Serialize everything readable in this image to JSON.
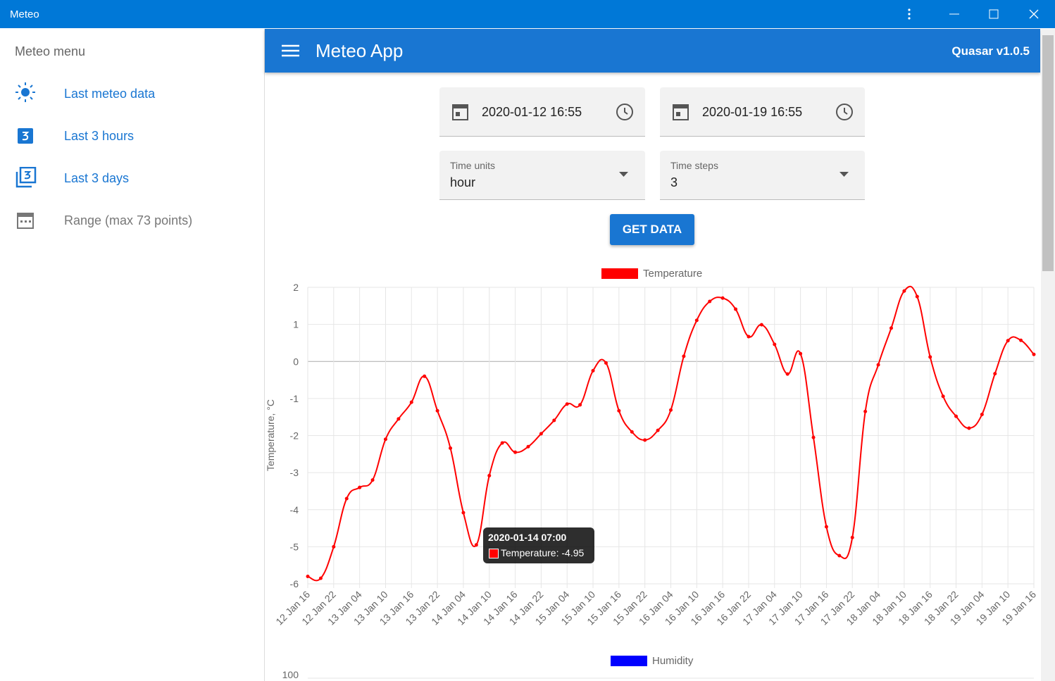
{
  "window": {
    "title": "Meteo"
  },
  "sidebar": {
    "title": "Meteo menu",
    "items": [
      "Last meteo data",
      "Last 3 hours",
      "Last 3 days",
      "Range (max 73 points)"
    ]
  },
  "header": {
    "title": "Meteo App",
    "version": "Quasar v1.0.5"
  },
  "form": {
    "from": "2020-01-12 16:55",
    "to": "2020-01-19 16:55",
    "time_units": {
      "label": "Time units",
      "value": "hour"
    },
    "time_steps": {
      "label": "Time steps",
      "value": "3"
    },
    "button": "GET DATA"
  },
  "tooltip": {
    "title": "2020-01-14 07:00",
    "text": "Temperature: -4.95"
  },
  "chart_data": [
    {
      "type": "line",
      "y_label": "Temperature, °C",
      "categories": [
        "12 Jan 16",
        null,
        "12 Jan 22",
        null,
        "13 Jan 04",
        null,
        "13 Jan 10",
        null,
        "13 Jan 16",
        null,
        "13 Jan 22",
        null,
        "14 Jan 04",
        null,
        "14 Jan 10",
        null,
        "14 Jan 16",
        null,
        "14 Jan 22",
        null,
        "15 Jan 04",
        null,
        "15 Jan 10",
        null,
        "15 Jan 16",
        null,
        "15 Jan 22",
        null,
        "16 Jan 04",
        null,
        "16 Jan 10",
        null,
        "16 Jan 16",
        null,
        "16 Jan 22",
        null,
        "17 Jan 04",
        null,
        "17 Jan 10",
        null,
        "17 Jan 16",
        null,
        "17 Jan 22",
        null,
        "18 Jan 04",
        null,
        "18 Jan 10",
        null,
        "18 Jan 16",
        null,
        "18 Jan 22",
        null,
        "19 Jan 04",
        null,
        "19 Jan 10",
        null,
        "19 Jan 16"
      ],
      "series": [
        {
          "name": "Temperature",
          "color": "#ff0000",
          "values": [
            -5.8,
            -5.85,
            -5.0,
            -3.7,
            -3.4,
            -3.2,
            -2.1,
            -1.55,
            -1.1,
            -0.4,
            -1.33,
            -2.34,
            -4.08,
            -4.95,
            -3.08,
            -2.2,
            -2.45,
            -2.3,
            -1.95,
            -1.59,
            -1.15,
            -1.17,
            -0.25,
            -0.04,
            -1.33,
            -1.9,
            -2.12,
            -1.86,
            -1.31,
            0.14,
            1.11,
            1.62,
            1.71,
            1.41,
            0.67,
            0.99,
            0.46,
            -0.34,
            0.21,
            -2.05,
            -4.46,
            -5.24,
            -4.75,
            -1.35,
            -0.09,
            0.9,
            1.9,
            1.75,
            0.12,
            -0.94,
            -1.48,
            -1.8,
            -1.43,
            -0.33,
            0.56,
            0.57,
            0.19
          ]
        }
      ],
      "ylim": [
        -6,
        2
      ],
      "yticks": [
        -6,
        -5,
        -4,
        -3,
        -2,
        -1,
        0,
        1,
        2
      ],
      "grid": true
    },
    {
      "type": "line",
      "series": [
        {
          "name": "Humidity",
          "color": "#0000ff",
          "values": []
        }
      ],
      "yticks": [
        100
      ],
      "grid": true
    }
  ]
}
